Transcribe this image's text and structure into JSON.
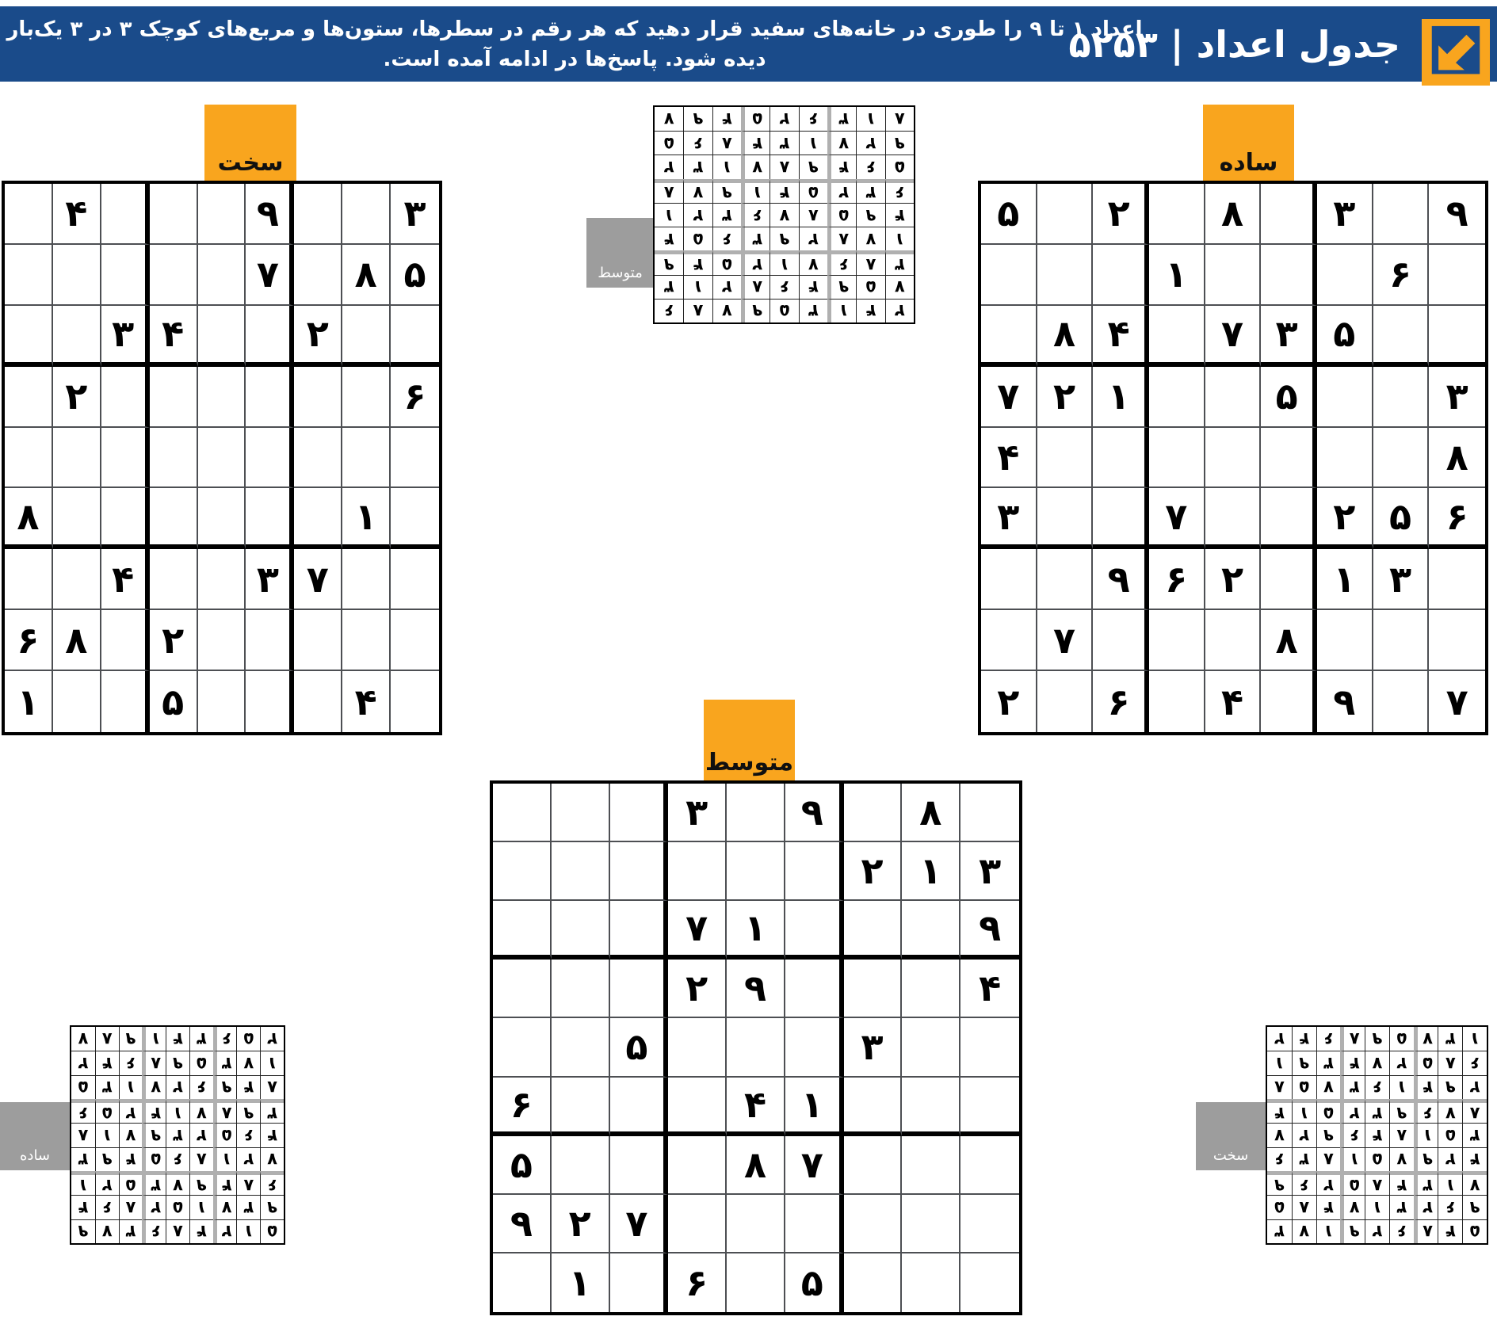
{
  "header": {
    "title": "جدول اعداد | ۵۲۵۳",
    "instructions_line1": "اعداد ۱ تا ۹ را طوری در خانه‌های سفید قرار دهید که هر رقم در سطرها، ستون‌ها و مربع‌های کوچک ۳ در ۳ یک‌بار",
    "instructions_line2": "دیده شود. پاسخ‌ها در ادامه آمده است.",
    "logo_icon": "arrow-down-left-icon",
    "bg_color": "#1a4b8a",
    "logo_color": "#f9a51e"
  },
  "colors": {
    "accent_orange": "#f9a51e",
    "tab_gray": "#9d9d9d",
    "header_blue": "#1a4b8a",
    "digit_black": "#000000",
    "thin_grid_line": "#4d4f53",
    "bold_grid_line": "#000000",
    "solution_box_line": "#b0b0b0"
  },
  "puzzles": [
    {
      "id": "hard",
      "label": "سخت",
      "grid": [
        [
          0,
          4,
          0,
          0,
          0,
          9,
          0,
          0,
          3
        ],
        [
          0,
          0,
          0,
          0,
          0,
          7,
          0,
          8,
          5
        ],
        [
          0,
          0,
          3,
          4,
          0,
          0,
          2,
          0,
          0
        ],
        [
          0,
          2,
          0,
          0,
          0,
          0,
          0,
          0,
          6
        ],
        [
          0,
          0,
          0,
          0,
          0,
          0,
          0,
          0,
          0
        ],
        [
          8,
          0,
          0,
          0,
          0,
          0,
          0,
          1,
          0
        ],
        [
          0,
          0,
          4,
          0,
          0,
          3,
          7,
          0,
          0
        ],
        [
          6,
          8,
          0,
          2,
          0,
          0,
          0,
          0,
          0
        ],
        [
          1,
          0,
          0,
          5,
          0,
          0,
          0,
          4,
          0
        ]
      ]
    },
    {
      "id": "easy",
      "label": "ساده",
      "grid": [
        [
          5,
          0,
          2,
          0,
          8,
          0,
          3,
          0,
          9
        ],
        [
          0,
          0,
          0,
          1,
          0,
          0,
          0,
          6,
          0
        ],
        [
          0,
          8,
          4,
          0,
          7,
          3,
          5,
          0,
          0
        ],
        [
          7,
          2,
          1,
          0,
          0,
          5,
          0,
          0,
          3
        ],
        [
          4,
          0,
          0,
          0,
          0,
          0,
          0,
          0,
          8
        ],
        [
          3,
          0,
          0,
          7,
          0,
          0,
          2,
          5,
          6
        ],
        [
          0,
          0,
          9,
          6,
          2,
          0,
          1,
          3,
          0
        ],
        [
          0,
          7,
          0,
          0,
          0,
          8,
          0,
          0,
          0
        ],
        [
          2,
          0,
          6,
          0,
          4,
          0,
          9,
          0,
          7
        ]
      ]
    },
    {
      "id": "medium",
      "label": "متوسط",
      "grid": [
        [
          0,
          0,
          0,
          3,
          0,
          9,
          0,
          8,
          0
        ],
        [
          0,
          0,
          0,
          0,
          0,
          0,
          2,
          1,
          3
        ],
        [
          0,
          0,
          0,
          7,
          1,
          0,
          0,
          0,
          9
        ],
        [
          0,
          0,
          0,
          2,
          9,
          0,
          0,
          0,
          4
        ],
        [
          0,
          0,
          5,
          0,
          0,
          0,
          3,
          0,
          0
        ],
        [
          6,
          0,
          0,
          0,
          4,
          1,
          0,
          0,
          0
        ],
        [
          5,
          0,
          0,
          0,
          8,
          7,
          0,
          0,
          0
        ],
        [
          9,
          2,
          7,
          0,
          0,
          0,
          0,
          0,
          0
        ],
        [
          0,
          1,
          0,
          6,
          0,
          5,
          0,
          0,
          0
        ]
      ]
    }
  ],
  "solutions": [
    {
      "id": "medium",
      "label": "متوسط",
      "printed_rotated_180": true,
      "grid": [
        [
          2,
          4,
          1,
          3,
          5,
          9,
          7,
          8,
          6
        ],
        [
          7,
          5,
          9,
          4,
          6,
          8,
          2,
          1,
          3
        ],
        [
          3,
          8,
          6,
          7,
          1,
          2,
          5,
          4,
          9
        ],
        [
          1,
          7,
          8,
          2,
          9,
          3,
          6,
          5,
          4
        ],
        [
          4,
          9,
          5,
          8,
          7,
          6,
          3,
          2,
          1
        ],
        [
          6,
          3,
          2,
          5,
          4,
          1,
          9,
          7,
          8
        ],
        [
          5,
          6,
          4,
          9,
          8,
          7,
          1,
          3,
          2
        ],
        [
          9,
          2,
          7,
          1,
          3,
          4,
          8,
          6,
          5
        ],
        [
          8,
          1,
          3,
          6,
          2,
          5,
          4,
          9,
          7
        ]
      ]
    },
    {
      "id": "easy",
      "label": "ساده",
      "printed_rotated_180": true,
      "grid": [
        [
          5,
          1,
          2,
          4,
          8,
          6,
          3,
          7,
          9
        ],
        [
          9,
          3,
          7,
          1,
          5,
          2,
          8,
          6,
          4
        ],
        [
          6,
          8,
          4,
          9,
          7,
          3,
          5,
          2,
          1
        ],
        [
          7,
          2,
          1,
          8,
          6,
          5,
          4,
          9,
          3
        ],
        [
          4,
          6,
          5,
          2,
          3,
          9,
          7,
          1,
          8
        ],
        [
          3,
          9,
          8,
          7,
          1,
          4,
          2,
          5,
          6
        ],
        [
          8,
          4,
          9,
          6,
          2,
          7,
          1,
          3,
          5
        ],
        [
          1,
          7,
          3,
          5,
          9,
          8,
          6,
          4,
          2
        ],
        [
          2,
          5,
          6,
          3,
          4,
          1,
          9,
          8,
          7
        ]
      ]
    },
    {
      "id": "hard",
      "label": "سخت",
      "printed_rotated_180": true,
      "grid": [
        [
          5,
          4,
          8,
          6,
          2,
          9,
          1,
          7,
          3
        ],
        [
          9,
          6,
          2,
          3,
          1,
          7,
          4,
          8,
          5
        ],
        [
          7,
          1,
          3,
          4,
          8,
          5,
          2,
          6,
          9
        ],
        [
          4,
          2,
          9,
          7,
          5,
          1,
          8,
          3,
          6
        ],
        [
          3,
          5,
          1,
          8,
          4,
          6,
          9,
          2,
          7
        ],
        [
          8,
          7,
          6,
          9,
          3,
          2,
          5,
          1,
          4
        ],
        [
          2,
          9,
          4,
          1,
          6,
          3,
          7,
          5,
          8
        ],
        [
          6,
          8,
          5,
          2,
          7,
          4,
          3,
          9,
          1
        ],
        [
          1,
          3,
          7,
          5,
          9,
          8,
          6,
          4,
          2
        ]
      ]
    }
  ]
}
